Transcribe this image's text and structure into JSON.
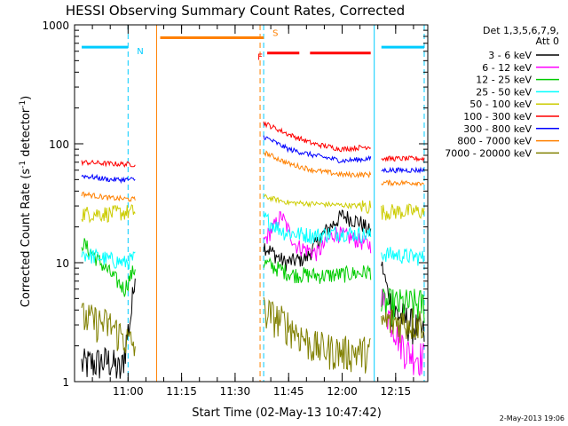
{
  "chart_data": {
    "type": "line",
    "title": "HESSI Observing Summary Count Rates, Corrected",
    "xlabel": "Start Time (02-May-13 10:47:42)",
    "ylabel_parts": [
      "Corrected Count Rate (s",
      "-1",
      " detector",
      "-1",
      ")"
    ],
    "yscale": "log",
    "ylim": [
      1,
      1000
    ],
    "xlim_minutes": [
      10.75,
      12.4
    ],
    "x_ticks": [
      "11:00",
      "11:15",
      "11:30",
      "11:45",
      "12:00",
      "12:15"
    ],
    "y_ticks": [
      "1",
      "10",
      "100",
      "1000"
    ],
    "legend_header": [
      "Det 1,3,5,6,7,9,",
      "Att 0"
    ],
    "legend_position": "right",
    "series": [
      {
        "name": "3 - 6 keV",
        "color": "#000000",
        "segments": [
          {
            "t": [
              "10:47",
              "10:55",
              "10:58",
              "11:01",
              "11:02"
            ],
            "y": [
              1.4,
              1.5,
              1.2,
              4,
              8
            ]
          },
          {
            "t": [
              "11:38",
              "11:44",
              "11:50",
              "11:55",
              "12:00",
              "12:05",
              "12:08"
            ],
            "y": [
              14,
              10,
              11,
              18,
              25,
              22,
              18
            ]
          },
          {
            "t": [
              "12:11",
              "12:14",
              "12:20",
              "12:23"
            ],
            "y": [
              10,
              4,
              3,
              2.5
            ]
          }
        ]
      },
      {
        "name": "6 - 12 keV",
        "color": "#ff00ff",
        "segments": [
          {
            "t": [
              "11:38",
              "11:43",
              "11:47",
              "11:53",
              "11:58",
              "12:03",
              "12:08"
            ],
            "y": [
              15,
              25,
              14,
              12,
              18,
              16,
              14
            ]
          },
          {
            "t": [
              "12:11",
              "12:18",
              "12:23"
            ],
            "y": [
              5,
              1.8,
              1.6
            ]
          }
        ]
      },
      {
        "name": "12 - 25 keV",
        "color": "#00cc00",
        "segments": [
          {
            "t": [
              "10:47",
              "10:59",
              "11:01",
              "11:02"
            ],
            "y": [
              15,
              6,
              8,
              9
            ]
          },
          {
            "t": [
              "11:38",
              "11:46",
              "11:55",
              "12:05",
              "12:08"
            ],
            "y": [
              10,
              8,
              7.8,
              8.2,
              8.5
            ]
          },
          {
            "t": [
              "12:11",
              "12:23"
            ],
            "y": [
              4.5,
              4.5
            ]
          }
        ]
      },
      {
        "name": "25 - 50 keV",
        "color": "#00ffff",
        "segments": [
          {
            "t": [
              "10:47",
              "10:59",
              "11:02"
            ],
            "y": [
              12,
              10,
              11
            ]
          },
          {
            "t": [
              "11:38",
              "11:44",
              "11:52",
              "12:00",
              "12:08"
            ],
            "y": [
              24,
              18,
              17,
              18,
              17
            ]
          },
          {
            "t": [
              "12:11",
              "12:23"
            ],
            "y": [
              12,
              11
            ]
          }
        ]
      },
      {
        "name": "50 - 100 keV",
        "color": "#cccc00",
        "segments": [
          {
            "t": [
              "10:47",
              "10:55",
              "11:02"
            ],
            "y": [
              26,
              26,
              27
            ]
          },
          {
            "t": [
              "11:38",
              "11:45",
              "11:55",
              "12:05",
              "12:08"
            ],
            "y": [
              36,
              32,
              31,
              30,
              30
            ]
          },
          {
            "t": [
              "12:11",
              "12:23"
            ],
            "y": [
              27,
              27
            ]
          }
        ]
      },
      {
        "name": "100 - 300 keV",
        "color": "#ff0000",
        "segments": [
          {
            "t": [
              "10:47",
              "10:55",
              "11:02"
            ],
            "y": [
              70,
              68,
              67
            ]
          },
          {
            "t": [
              "11:38",
              "11:45",
              "11:52",
              "12:00",
              "12:08"
            ],
            "y": [
              150,
              120,
              100,
              90,
              95
            ]
          },
          {
            "t": [
              "12:11",
              "12:23"
            ],
            "y": [
              75,
              75
            ]
          }
        ]
      },
      {
        "name": "300 - 800 keV",
        "color": "#0000ff",
        "segments": [
          {
            "t": [
              "10:47",
              "10:55",
              "11:02"
            ],
            "y": [
              54,
              50,
              50
            ]
          },
          {
            "t": [
              "11:38",
              "11:45",
              "11:52",
              "12:00",
              "12:08"
            ],
            "y": [
              115,
              90,
              80,
              72,
              75
            ]
          },
          {
            "t": [
              "12:11",
              "12:23"
            ],
            "y": [
              60,
              60
            ]
          }
        ]
      },
      {
        "name": "800 - 7000 keV",
        "color": "#ff8000",
        "segments": [
          {
            "t": [
              "10:47",
              "10:55",
              "11:02"
            ],
            "y": [
              38,
              35,
              34
            ]
          },
          {
            "t": [
              "11:38",
              "11:45",
              "11:52",
              "12:00",
              "12:08"
            ],
            "y": [
              85,
              68,
              60,
              55,
              55
            ]
          },
          {
            "t": [
              "12:11",
              "12:23"
            ],
            "y": [
              47,
              47
            ]
          }
        ]
      },
      {
        "name": "7000 - 20000 keV",
        "color": "#808000",
        "segments": [
          {
            "t": [
              "10:47",
              "10:55",
              "11:00",
              "11:02"
            ],
            "y": [
              3.5,
              3,
              2.2,
              2
            ]
          },
          {
            "t": [
              "11:38",
              "11:45",
              "11:52",
              "12:00",
              "12:08"
            ],
            "y": [
              4,
              3,
              2,
              1.8,
              1.8
            ]
          },
          {
            "t": [
              "12:11",
              "12:23"
            ],
            "y": [
              3.2,
              3.2
            ]
          }
        ]
      }
    ],
    "flags": [
      {
        "label": "N",
        "color": "#00ccff",
        "t": [
          "10:47",
          "11:00"
        ],
        "level": 650
      },
      {
        "label": "S",
        "color": "#ff8000",
        "t": [
          "11:09",
          "11:38"
        ],
        "level": 780
      },
      {
        "label": "F",
        "color": "#ff0000",
        "t": [
          "11:39",
          "11:48"
        ],
        "level": 580
      },
      {
        "label": "",
        "color": "#ff0000",
        "t": [
          "11:51",
          "12:08"
        ],
        "level": 580
      },
      {
        "label": "",
        "color": "#00ccff",
        "t": [
          "12:11",
          "12:23"
        ],
        "level": 650
      }
    ],
    "vlines": [
      {
        "t": "11:00",
        "color": "#00ccff",
        "style": "dashed"
      },
      {
        "t": "11:08",
        "color": "#ff8000",
        "style": "solid"
      },
      {
        "t": "11:37",
        "color": "#ff8000",
        "style": "dashed"
      },
      {
        "t": "11:38",
        "color": "#00ccff",
        "style": "dashed"
      },
      {
        "t": "12:09",
        "color": "#00ccff",
        "style": "solid"
      },
      {
        "t": "12:23",
        "color": "#00ccff",
        "style": "dashed"
      }
    ],
    "grid": false
  },
  "footer": {
    "date_stamp": "2-May-2013 19:06"
  }
}
